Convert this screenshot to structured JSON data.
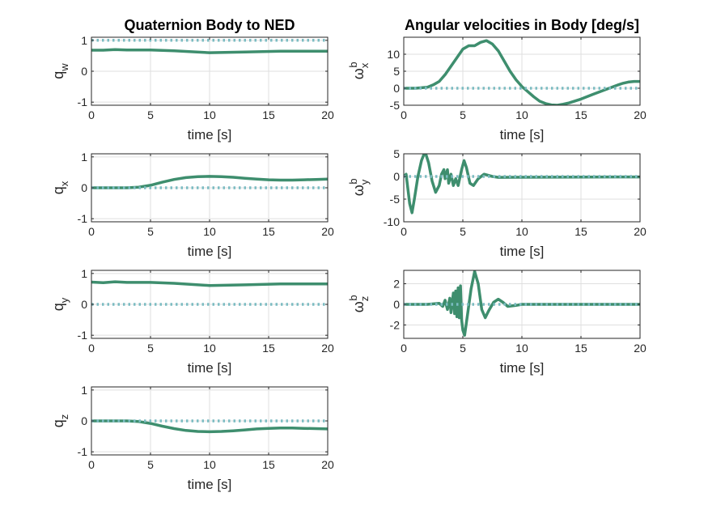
{
  "colors": {
    "signal": "#3e8e6e",
    "reference": "#7bbcc2",
    "grid": "#dfdfdf",
    "axis": "#262626"
  },
  "chart_data": [
    {
      "id": "qw",
      "type": "line",
      "column": 0,
      "row": 0,
      "title": "Quaternion Body to NED",
      "xlabel": "time [s]",
      "ylabel": "q",
      "ylabel_sub": "w",
      "ylabel_sup": "",
      "xlim": [
        0,
        20
      ],
      "ylim": [
        -1.1,
        1.1
      ],
      "xticks": [
        0,
        5,
        10,
        15,
        20
      ],
      "yticks": [
        -1,
        0,
        1
      ],
      "grid": true,
      "series": [
        {
          "role": "signal",
          "points": [
            [
              0,
              0.68
            ],
            [
              1,
              0.68
            ],
            [
              2,
              0.7
            ],
            [
              3,
              0.69
            ],
            [
              5,
              0.69
            ],
            [
              7,
              0.66
            ],
            [
              10,
              0.6
            ],
            [
              13,
              0.62
            ],
            [
              16,
              0.65
            ],
            [
              20,
              0.65
            ]
          ]
        },
        {
          "role": "reference",
          "points": [
            [
              0,
              1
            ],
            [
              20,
              1
            ]
          ]
        }
      ]
    },
    {
      "id": "qx",
      "type": "line",
      "column": 0,
      "row": 1,
      "title": "",
      "xlabel": "time [s]",
      "ylabel": "q",
      "ylabel_sub": "x",
      "ylabel_sup": "",
      "xlim": [
        0,
        20
      ],
      "ylim": [
        -1.1,
        1.1
      ],
      "xticks": [
        0,
        5,
        10,
        15,
        20
      ],
      "yticks": [
        -1,
        0,
        1
      ],
      "grid": true,
      "series": [
        {
          "role": "signal",
          "points": [
            [
              0,
              0
            ],
            [
              3,
              0
            ],
            [
              4,
              0.02
            ],
            [
              5,
              0.08
            ],
            [
              6,
              0.18
            ],
            [
              7,
              0.27
            ],
            [
              8,
              0.33
            ],
            [
              9,
              0.36
            ],
            [
              10,
              0.37
            ],
            [
              11,
              0.36
            ],
            [
              12,
              0.34
            ],
            [
              13,
              0.31
            ],
            [
              14,
              0.28
            ],
            [
              15,
              0.26
            ],
            [
              16,
              0.25
            ],
            [
              17,
              0.25
            ],
            [
              18,
              0.26
            ],
            [
              19,
              0.27
            ],
            [
              20,
              0.28
            ]
          ]
        },
        {
          "role": "reference",
          "points": [
            [
              0,
              0
            ],
            [
              20,
              0
            ]
          ]
        }
      ]
    },
    {
      "id": "qy",
      "type": "line",
      "column": 0,
      "row": 2,
      "title": "",
      "xlabel": "time [s]",
      "ylabel": "q",
      "ylabel_sub": "y",
      "ylabel_sup": "",
      "xlim": [
        0,
        20
      ],
      "ylim": [
        -1.1,
        1.1
      ],
      "xticks": [
        0,
        5,
        10,
        15,
        20
      ],
      "yticks": [
        -1,
        0,
        1
      ],
      "grid": true,
      "series": [
        {
          "role": "signal",
          "points": [
            [
              0,
              0.72
            ],
            [
              1,
              0.7
            ],
            [
              2,
              0.73
            ],
            [
              3,
              0.71
            ],
            [
              5,
              0.71
            ],
            [
              7,
              0.68
            ],
            [
              10,
              0.61
            ],
            [
              13,
              0.63
            ],
            [
              16,
              0.66
            ],
            [
              20,
              0.66
            ]
          ]
        },
        {
          "role": "reference",
          "points": [
            [
              0,
              0
            ],
            [
              20,
              0
            ]
          ]
        }
      ]
    },
    {
      "id": "qz",
      "type": "line",
      "column": 0,
      "row": 3,
      "title": "",
      "xlabel": "time [s]",
      "ylabel": "q",
      "ylabel_sub": "z",
      "ylabel_sup": "",
      "xlim": [
        0,
        20
      ],
      "ylim": [
        -1.1,
        1.1
      ],
      "xticks": [
        0,
        5,
        10,
        15,
        20
      ],
      "yticks": [
        -1,
        0,
        1
      ],
      "grid": true,
      "series": [
        {
          "role": "signal",
          "points": [
            [
              0,
              0
            ],
            [
              3,
              0
            ],
            [
              4,
              -0.02
            ],
            [
              5,
              -0.08
            ],
            [
              6,
              -0.17
            ],
            [
              7,
              -0.25
            ],
            [
              8,
              -0.31
            ],
            [
              9,
              -0.34
            ],
            [
              10,
              -0.35
            ],
            [
              11,
              -0.34
            ],
            [
              12,
              -0.32
            ],
            [
              13,
              -0.29
            ],
            [
              14,
              -0.26
            ],
            [
              15,
              -0.24
            ],
            [
              16,
              -0.23
            ],
            [
              17,
              -0.23
            ],
            [
              18,
              -0.24
            ],
            [
              19,
              -0.25
            ],
            [
              20,
              -0.26
            ]
          ]
        },
        {
          "role": "reference",
          "points": [
            [
              0,
              0
            ],
            [
              20,
              0
            ]
          ]
        }
      ]
    },
    {
      "id": "wx",
      "type": "line",
      "column": 1,
      "row": 0,
      "title": "Angular velocities in Body [deg/s]",
      "xlabel": "time [s]",
      "ylabel": "ω",
      "ylabel_sub": "x",
      "ylabel_sup": "b",
      "xlim": [
        0,
        20
      ],
      "ylim": [
        -5,
        15
      ],
      "xticks": [
        0,
        5,
        10,
        15,
        20
      ],
      "yticks": [
        -5,
        0,
        5,
        10
      ],
      "grid": true,
      "series": [
        {
          "role": "signal",
          "points": [
            [
              0,
              0
            ],
            [
              1,
              0
            ],
            [
              2,
              0.3
            ],
            [
              2.5,
              1
            ],
            [
              3,
              2
            ],
            [
              3.5,
              4
            ],
            [
              4,
              6.5
            ],
            [
              4.5,
              9
            ],
            [
              5,
              11.5
            ],
            [
              5.5,
              12.5
            ],
            [
              6,
              12.5
            ],
            [
              6.5,
              13.5
            ],
            [
              7,
              14
            ],
            [
              7.5,
              13
            ],
            [
              8,
              11
            ],
            [
              8.5,
              8
            ],
            [
              9,
              5
            ],
            [
              9.5,
              2.5
            ],
            [
              10,
              0.5
            ],
            [
              10.5,
              -1
            ],
            [
              11,
              -2.5
            ],
            [
              11.5,
              -3.8
            ],
            [
              12,
              -4.5
            ],
            [
              12.5,
              -4.9
            ],
            [
              13,
              -5
            ],
            [
              13.5,
              -4.7
            ],
            [
              14,
              -4.3
            ],
            [
              15,
              -3.2
            ],
            [
              16,
              -1.8
            ],
            [
              17,
              -0.5
            ],
            [
              18,
              0.8
            ],
            [
              18.5,
              1.4
            ],
            [
              19,
              1.8
            ],
            [
              19.5,
              2
            ],
            [
              20,
              2
            ]
          ]
        },
        {
          "role": "reference",
          "points": [
            [
              0,
              0
            ],
            [
              20,
              0
            ]
          ]
        }
      ]
    },
    {
      "id": "wy",
      "type": "line",
      "column": 1,
      "row": 1,
      "title": "",
      "xlabel": "time [s]",
      "ylabel": "ω",
      "ylabel_sub": "y",
      "ylabel_sup": "b",
      "xlim": [
        0,
        20
      ],
      "ylim": [
        -10,
        5
      ],
      "xticks": [
        0,
        5,
        10,
        15,
        20
      ],
      "yticks": [
        -10,
        -5,
        0,
        5
      ],
      "grid": true,
      "series": [
        {
          "role": "signal",
          "points": [
            [
              0,
              0
            ],
            [
              0.2,
              0.5
            ],
            [
              0.5,
              -6
            ],
            [
              0.7,
              -8
            ],
            [
              0.9,
              -5
            ],
            [
              1.2,
              0
            ],
            [
              1.5,
              3.5
            ],
            [
              1.8,
              5.5
            ],
            [
              2.1,
              3
            ],
            [
              2.4,
              -1
            ],
            [
              2.7,
              -3.5
            ],
            [
              3,
              -2
            ],
            [
              3.2,
              0.5
            ],
            [
              3.4,
              1.5
            ],
            [
              3.5,
              -0.5
            ],
            [
              3.7,
              1.5
            ],
            [
              3.8,
              -1.5
            ],
            [
              4,
              0.5
            ],
            [
              4.2,
              -2
            ],
            [
              4.4,
              -0.5
            ],
            [
              4.6,
              -2
            ],
            [
              4.9,
              1.5
            ],
            [
              5.1,
              3.5
            ],
            [
              5.3,
              2
            ],
            [
              5.6,
              -1.5
            ],
            [
              5.9,
              -2
            ],
            [
              6.3,
              -0.5
            ],
            [
              6.8,
              0.5
            ],
            [
              7.5,
              0
            ],
            [
              8,
              -0.2
            ],
            [
              20,
              -0.1
            ]
          ]
        },
        {
          "role": "reference",
          "points": [
            [
              0,
              0
            ],
            [
              20,
              0
            ]
          ]
        }
      ]
    },
    {
      "id": "wz",
      "type": "line",
      "column": 1,
      "row": 2,
      "title": "",
      "xlabel": "time [s]",
      "ylabel": "ω",
      "ylabel_sub": "z",
      "ylabel_sup": "b",
      "xlim": [
        0,
        20
      ],
      "ylim": [
        -3.3,
        3.3
      ],
      "xticks": [
        0,
        5,
        10,
        15,
        20
      ],
      "yticks": [
        -2,
        0,
        2
      ],
      "grid": true,
      "series": [
        {
          "role": "signal",
          "points": [
            [
              0,
              0
            ],
            [
              2,
              0
            ],
            [
              3,
              0.1
            ],
            [
              3.3,
              -0.2
            ],
            [
              3.5,
              0.4
            ],
            [
              3.7,
              -0.5
            ],
            [
              3.9,
              0.6
            ],
            [
              4,
              -0.8
            ],
            [
              4.2,
              1.1
            ],
            [
              4.3,
              -0.9
            ],
            [
              4.4,
              1.3
            ],
            [
              4.5,
              -1.2
            ],
            [
              4.6,
              1.6
            ],
            [
              4.7,
              -1.3
            ],
            [
              4.8,
              1.8
            ],
            [
              4.9,
              -1.5
            ],
            [
              5,
              -2.5
            ],
            [
              5.15,
              -3
            ],
            [
              5.4,
              -1
            ],
            [
              5.7,
              1.5
            ],
            [
              6,
              3.2
            ],
            [
              6.3,
              2
            ],
            [
              6.6,
              -0.5
            ],
            [
              6.9,
              -1.3
            ],
            [
              7.2,
              -0.6
            ],
            [
              7.6,
              0.2
            ],
            [
              8,
              0.5
            ],
            [
              8.4,
              0.2
            ],
            [
              8.8,
              -0.2
            ],
            [
              9.5,
              -0.1
            ],
            [
              10,
              0
            ],
            [
              20,
              0
            ]
          ]
        },
        {
          "role": "reference",
          "points": [
            [
              0,
              0
            ],
            [
              20,
              0
            ]
          ]
        }
      ]
    }
  ]
}
